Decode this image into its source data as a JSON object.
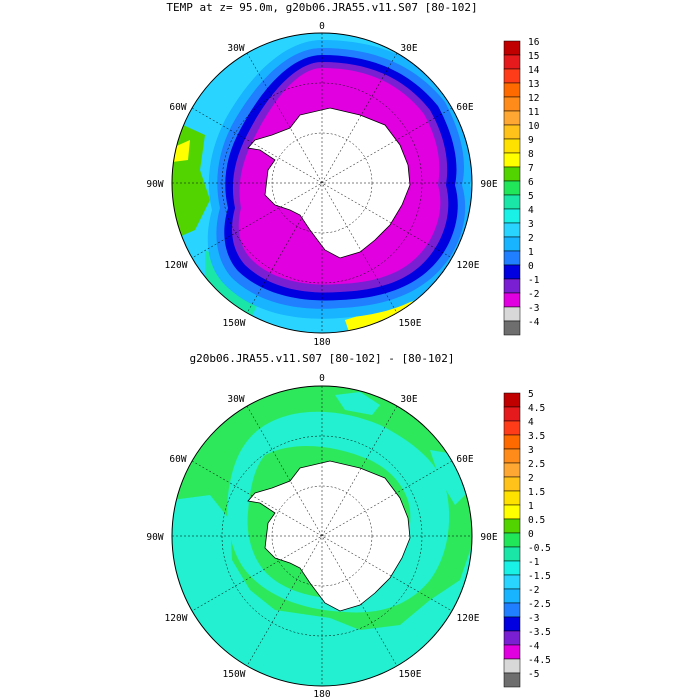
{
  "top_panel": {
    "title": "TEMP at z=  95.0m, g20b06.JRA55.v11.S07 [80-102]",
    "lon_labels": {
      "n": "0",
      "nne": "30E",
      "ene": "60E",
      "e": "90E",
      "ese": "120E",
      "sse": "150E",
      "s": "180",
      "ssw": "150W",
      "wsw": "120W",
      "w": "90W",
      "wnw": "60W",
      "nnw": "30W"
    },
    "colorbar": {
      "labels": [
        "16",
        "15",
        "14",
        "13",
        "12",
        "11",
        "10",
        "9",
        "8",
        "7",
        "6",
        "5",
        "4",
        "3",
        "2",
        "1",
        "0",
        "-1",
        "-2",
        "-3",
        "-4"
      ],
      "colors": [
        "#c00000",
        "#e41a1c",
        "#ff3c1a",
        "#ff6a00",
        "#ff8c1a",
        "#ffa733",
        "#ffc21a",
        "#ffe100",
        "#ffff00",
        "#52d400",
        "#22e65a",
        "#1ae6a8",
        "#19f0e6",
        "#29d4ff",
        "#18b4ff",
        "#1f7fff",
        "#0000e0",
        "#7b1fd2",
        "#e000e0",
        "#d8d8d8",
        "#6e6e6e"
      ]
    }
  },
  "bottom_panel": {
    "title": "g20b06.JRA55.v11.S07 [80-102] -  [80-102]",
    "lon_labels": {
      "n": "0",
      "nne": "30E",
      "ene": "60E",
      "e": "90E",
      "ese": "120E",
      "sse": "150E",
      "s": "180",
      "ssw": "150W",
      "wsw": "120W",
      "w": "90W",
      "wnw": "60W",
      "nnw": "30W"
    },
    "colorbar": {
      "labels": [
        "5",
        "4.5",
        "4",
        "3.5",
        "3",
        "2.5",
        "2",
        "1.5",
        "1",
        "0.5",
        "0",
        "-0.5",
        "-1",
        "-1.5",
        "-2",
        "-2.5",
        "-3",
        "-3.5",
        "-4",
        "-4.5",
        "-5"
      ],
      "colors": [
        "#c00000",
        "#e41a1c",
        "#ff3c1a",
        "#ff6a00",
        "#ff8c1a",
        "#ffa733",
        "#ffc21a",
        "#ffe100",
        "#ffff00",
        "#52d400",
        "#22e65a",
        "#1ae6a8",
        "#19f0e6",
        "#29d4ff",
        "#18b4ff",
        "#1f7fff",
        "#0000e0",
        "#7b1fd2",
        "#e000e0",
        "#d8d8d8",
        "#6e6e6e"
      ]
    }
  },
  "map_colors": {
    "green": "#2ee85c",
    "cyan": "#22f0d0",
    "magenta": "#e000e0",
    "purple": "#7b1fd2",
    "blue": "#0000e0",
    "land": "#ffffff"
  }
}
